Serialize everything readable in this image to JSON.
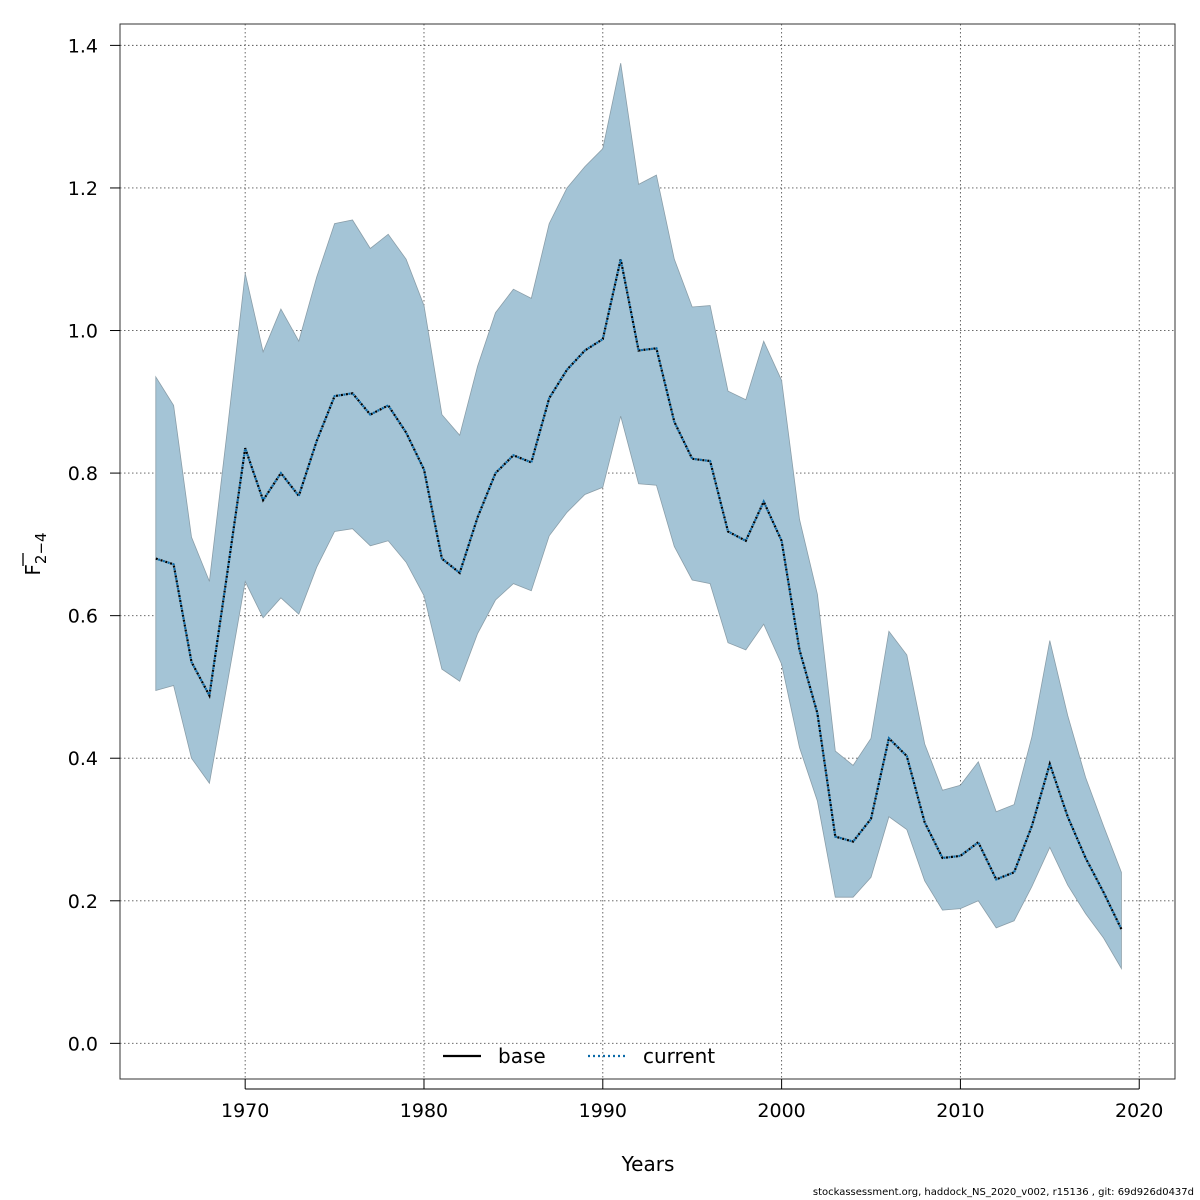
{
  "chart_data": {
    "type": "line",
    "title": "",
    "xlabel": "Years",
    "ylabel_main": "F",
    "ylabel_sub": "2−4",
    "xlim": [
      1963,
      2022
    ],
    "ylim": [
      -0.05,
      1.43
    ],
    "x_ticks": [
      1970,
      1980,
      1990,
      2000,
      2010,
      2020
    ],
    "y_ticks": [
      0.0,
      0.2,
      0.4,
      0.6,
      0.8,
      1.0,
      1.2,
      1.4
    ],
    "x_tick_labels": [
      "1970",
      "1980",
      "1990",
      "2000",
      "2010",
      "2020"
    ],
    "y_tick_labels": [
      "0.0",
      "0.2",
      "0.4",
      "0.6",
      "0.8",
      "1.0",
      "1.2",
      "1.4"
    ],
    "grid": true,
    "legend_position": "bottom-center",
    "colors": {
      "band": "#a4c4d6",
      "band_edge": "#8a9ea9",
      "base": "#000000",
      "current": "#0a6aa8"
    },
    "x": [
      1965,
      1966,
      1967,
      1968,
      1969,
      1970,
      1971,
      1972,
      1973,
      1974,
      1975,
      1976,
      1977,
      1978,
      1979,
      1980,
      1981,
      1982,
      1983,
      1984,
      1985,
      1986,
      1987,
      1988,
      1989,
      1990,
      1991,
      1992,
      1993,
      1994,
      1995,
      1996,
      1997,
      1998,
      1999,
      2000,
      2001,
      2002,
      2003,
      2004,
      2005,
      2006,
      2007,
      2008,
      2009,
      2010,
      2011,
      2012,
      2013,
      2014,
      2015,
      2016,
      2017,
      2018,
      2019
    ],
    "upper": [
      0.935,
      0.895,
      0.71,
      0.648,
      0.86,
      1.08,
      0.97,
      1.03,
      0.985,
      1.075,
      1.15,
      1.155,
      1.115,
      1.135,
      1.1,
      1.035,
      0.882,
      0.853,
      0.95,
      1.025,
      1.058,
      1.045,
      1.15,
      1.2,
      1.23,
      1.255,
      1.375,
      1.205,
      1.218,
      1.1,
      1.033,
      1.035,
      0.915,
      0.903,
      0.985,
      0.93,
      0.735,
      0.63,
      0.41,
      0.39,
      0.428,
      0.578,
      0.545,
      0.42,
      0.355,
      0.362,
      0.395,
      0.325,
      0.335,
      0.43,
      0.565,
      0.46,
      0.373,
      0.305,
      0.24
    ],
    "lower": [
      0.495,
      0.502,
      0.4,
      0.365,
      0.505,
      0.648,
      0.597,
      0.625,
      0.602,
      0.668,
      0.718,
      0.722,
      0.698,
      0.705,
      0.675,
      0.628,
      0.525,
      0.508,
      0.575,
      0.622,
      0.645,
      0.635,
      0.712,
      0.745,
      0.77,
      0.78,
      0.88,
      0.785,
      0.783,
      0.697,
      0.65,
      0.645,
      0.562,
      0.552,
      0.588,
      0.532,
      0.415,
      0.34,
      0.205,
      0.205,
      0.233,
      0.318,
      0.3,
      0.228,
      0.187,
      0.189,
      0.2,
      0.162,
      0.172,
      0.22,
      0.275,
      0.222,
      0.182,
      0.148,
      0.105
    ],
    "series": [
      {
        "name": "base",
        "values": [
          0.68,
          0.672,
          0.535,
          0.488,
          0.66,
          0.835,
          0.762,
          0.8,
          0.768,
          0.845,
          0.908,
          0.912,
          0.882,
          0.895,
          0.857,
          0.805,
          0.68,
          0.66,
          0.738,
          0.8,
          0.825,
          0.815,
          0.905,
          0.945,
          0.972,
          0.988,
          1.1,
          0.972,
          0.975,
          0.872,
          0.82,
          0.817,
          0.718,
          0.705,
          0.76,
          0.705,
          0.552,
          0.463,
          0.29,
          0.283,
          0.315,
          0.428,
          0.403,
          0.31,
          0.26,
          0.263,
          0.282,
          0.23,
          0.24,
          0.305,
          0.392,
          0.318,
          0.26,
          0.212,
          0.16
        ]
      },
      {
        "name": "current",
        "values": [
          0.68,
          0.672,
          0.535,
          0.488,
          0.66,
          0.835,
          0.762,
          0.8,
          0.768,
          0.845,
          0.908,
          0.912,
          0.882,
          0.895,
          0.857,
          0.805,
          0.68,
          0.66,
          0.738,
          0.8,
          0.825,
          0.815,
          0.905,
          0.945,
          0.972,
          0.988,
          1.1,
          0.972,
          0.975,
          0.872,
          0.82,
          0.817,
          0.718,
          0.705,
          0.76,
          0.705,
          0.552,
          0.463,
          0.29,
          0.283,
          0.315,
          0.428,
          0.403,
          0.31,
          0.26,
          0.263,
          0.282,
          0.23,
          0.24,
          0.305,
          0.392,
          0.318,
          0.26,
          0.212,
          0.16
        ]
      }
    ]
  },
  "footer_text": "stockassessment.org, haddock_NS_2020_v002, r15136 , git: 69d926d0437d"
}
